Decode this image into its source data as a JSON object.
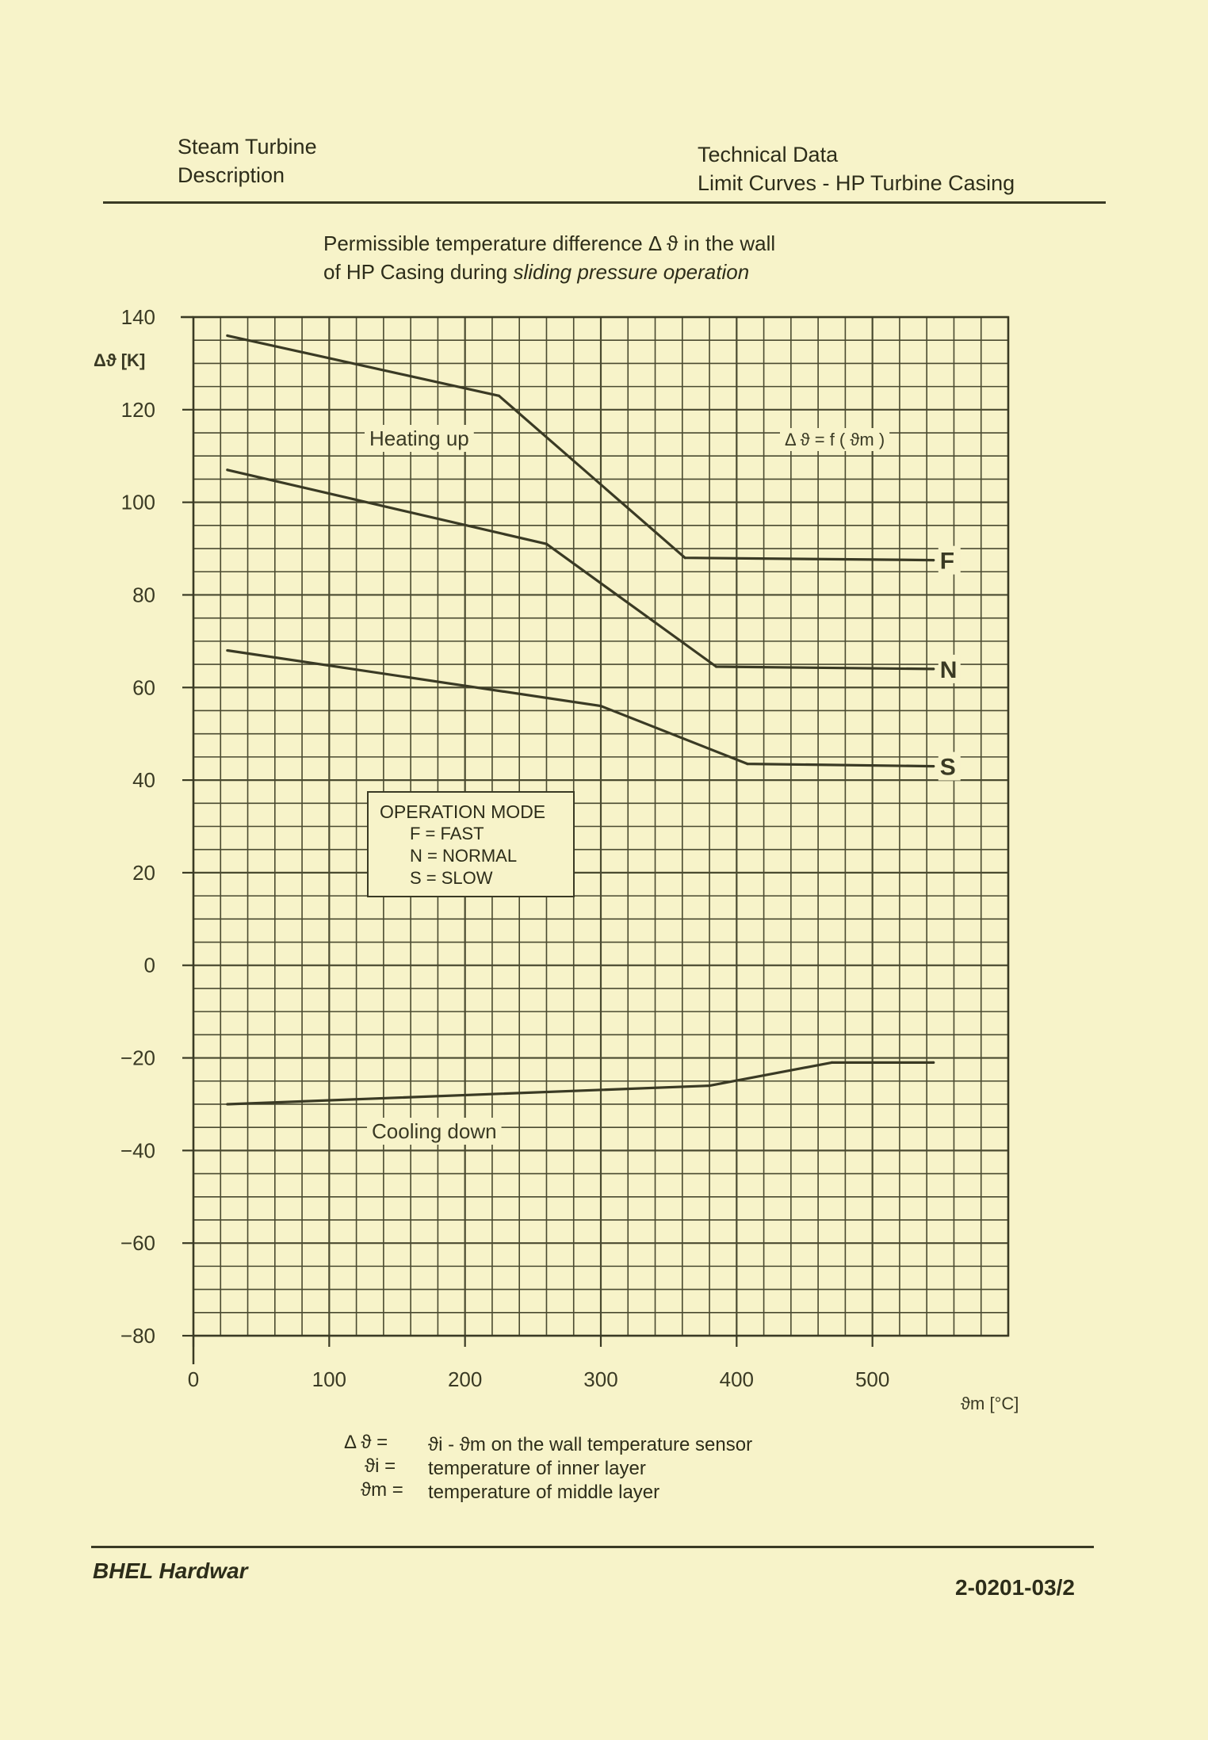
{
  "header": {
    "left_line1": "Steam Turbine",
    "left_line2": "Description",
    "right_line1": "Technical Data",
    "right_line2": "Limit Curves - HP Turbine Casing"
  },
  "chart_title": {
    "line1": "Permissible temperature difference Δ ϑ in the wall",
    "line2_plain": "of HP Casing during ",
    "line2_italic": "sliding pressure operation"
  },
  "chart_data": {
    "type": "line",
    "ylabel": "Δϑ [K]",
    "xlabel": "ϑm [°C]",
    "xlim": [
      0,
      600
    ],
    "ylim": [
      -80,
      140
    ],
    "x_ticks": [
      0,
      100,
      200,
      300,
      400,
      500
    ],
    "y_ticks": [
      140,
      120,
      100,
      80,
      60,
      40,
      20,
      0,
      -20,
      -40,
      -60,
      -80
    ],
    "grid": true,
    "series": [
      {
        "name": "F",
        "points": [
          [
            25,
            136
          ],
          [
            225,
            123
          ],
          [
            362,
            88
          ],
          [
            545,
            87.5
          ]
        ]
      },
      {
        "name": "N",
        "points": [
          [
            25,
            107
          ],
          [
            260,
            91
          ],
          [
            385,
            64.5
          ],
          [
            545,
            64
          ]
        ]
      },
      {
        "name": "S",
        "points": [
          [
            25,
            68
          ],
          [
            300,
            56
          ],
          [
            408,
            43.5
          ],
          [
            545,
            43
          ]
        ]
      },
      {
        "points": [
          [
            25,
            -30
          ],
          [
            380,
            -26
          ],
          [
            470,
            -21
          ],
          [
            545,
            -21
          ]
        ]
      }
    ],
    "annotations": {
      "heating": "Heating up",
      "cooling": "Cooling down",
      "function": "Δ ϑ = f ( ϑm )"
    }
  },
  "legend": {
    "title": "OPERATION MODE",
    "items": [
      "F = FAST",
      "N = NORMAL",
      "S = SLOW"
    ]
  },
  "definitions": [
    {
      "lhs": "Δ ϑ =",
      "rhs": "ϑi - ϑm on the wall temperature sensor"
    },
    {
      "lhs": "ϑi =",
      "rhs": "temperature of inner layer"
    },
    {
      "lhs": "ϑm =",
      "rhs": "temperature of middle layer"
    }
  ],
  "footer": {
    "left": "BHEL Hardwar",
    "right": "2-0201-03/2"
  },
  "colors": {
    "paper": "#f7f3c9",
    "ink": "#3a3a24",
    "grid": "#4a4a30"
  }
}
